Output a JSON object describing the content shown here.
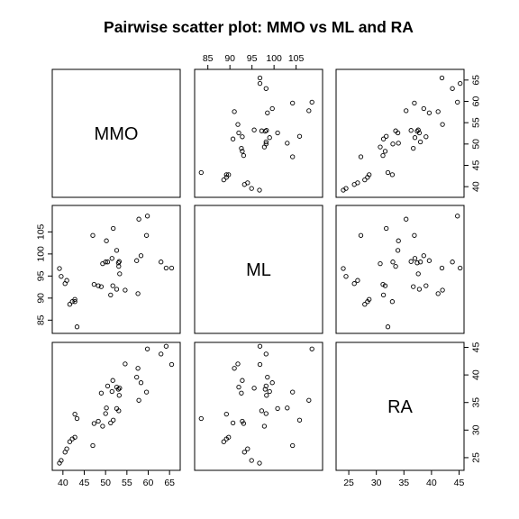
{
  "chart_data": {
    "type": "scatter",
    "title": "Pairwise scatter plot: MMO vs ML and RA",
    "variables": [
      {
        "name": "MMO",
        "range": [
          37.5,
          67.5
        ],
        "ticks": [
          40,
          45,
          50,
          55,
          60,
          65
        ]
      },
      {
        "name": "ML",
        "range": [
          82,
          111
        ],
        "ticks": [
          85,
          90,
          95,
          100,
          105
        ]
      },
      {
        "name": "RA",
        "range": [
          22.7,
          45.9
        ],
        "ticks": [
          25,
          30,
          35,
          40,
          45
        ]
      }
    ],
    "observations": [
      {
        "MMO": 39.2,
        "ML": 96.7,
        "RA": 24.0
      },
      {
        "MMO": 39.6,
        "ML": 94.9,
        "RA": 24.5
      },
      {
        "MMO": 40.5,
        "ML": 93.3,
        "RA": 26.0
      },
      {
        "MMO": 40.9,
        "ML": 94.0,
        "RA": 26.6
      },
      {
        "MMO": 41.6,
        "ML": 88.6,
        "RA": 27.9
      },
      {
        "MMO": 42.2,
        "ML": 89.2,
        "RA": 28.4
      },
      {
        "MMO": 42.8,
        "ML": 89.7,
        "RA": 28.7
      },
      {
        "MMO": 42.8,
        "ML": 89.2,
        "RA": 32.9
      },
      {
        "MMO": 43.3,
        "ML": 83.5,
        "RA": 32.1
      },
      {
        "MMO": 47.0,
        "ML": 104.2,
        "RA": 27.2
      },
      {
        "MMO": 47.3,
        "ML": 93.1,
        "RA": 31.2
      },
      {
        "MMO": 48.3,
        "ML": 92.8,
        "RA": 31.6
      },
      {
        "MMO": 49.0,
        "ML": 92.6,
        "RA": 36.7
      },
      {
        "MMO": 49.3,
        "ML": 97.8,
        "RA": 30.7
      },
      {
        "MMO": 50.0,
        "ML": 98.2,
        "RA": 33.0
      },
      {
        "MMO": 50.2,
        "ML": 103.0,
        "RA": 34.0
      },
      {
        "MMO": 50.5,
        "ML": 98.2,
        "RA": 38.0
      },
      {
        "MMO": 51.2,
        "ML": 90.7,
        "RA": 31.3
      },
      {
        "MMO": 51.5,
        "ML": 99.0,
        "RA": 37.0
      },
      {
        "MMO": 51.7,
        "ML": 92.8,
        "RA": 39.0
      },
      {
        "MMO": 51.8,
        "ML": 105.8,
        "RA": 31.8
      },
      {
        "MMO": 52.6,
        "ML": 92.0,
        "RA": 37.8
      },
      {
        "MMO": 52.6,
        "ML": 100.8,
        "RA": 33.9
      },
      {
        "MMO": 53.0,
        "ML": 98.0,
        "RA": 37.4
      },
      {
        "MMO": 53.1,
        "ML": 97.2,
        "RA": 33.5
      },
      {
        "MMO": 53.2,
        "ML": 98.3,
        "RA": 36.3
      },
      {
        "MMO": 53.3,
        "ML": 95.5,
        "RA": 37.6
      },
      {
        "MMO": 54.6,
        "ML": 91.8,
        "RA": 42.0
      },
      {
        "MMO": 57.3,
        "ML": 98.5,
        "RA": 39.6
      },
      {
        "MMO": 57.6,
        "ML": 91.0,
        "RA": 41.2
      },
      {
        "MMO": 57.8,
        "ML": 107.9,
        "RA": 35.4
      },
      {
        "MMO": 58.3,
        "ML": 99.6,
        "RA": 38.6
      },
      {
        "MMO": 59.6,
        "ML": 104.2,
        "RA": 36.9
      },
      {
        "MMO": 59.8,
        "ML": 108.6,
        "RA": 44.7
      },
      {
        "MMO": 63.0,
        "ML": 98.2,
        "RA": 43.8
      },
      {
        "MMO": 64.2,
        "ML": 96.8,
        "RA": 45.2
      },
      {
        "MMO": 65.5,
        "ML": 96.8,
        "RA": 41.9
      }
    ],
    "grid": false,
    "legend": "none"
  }
}
